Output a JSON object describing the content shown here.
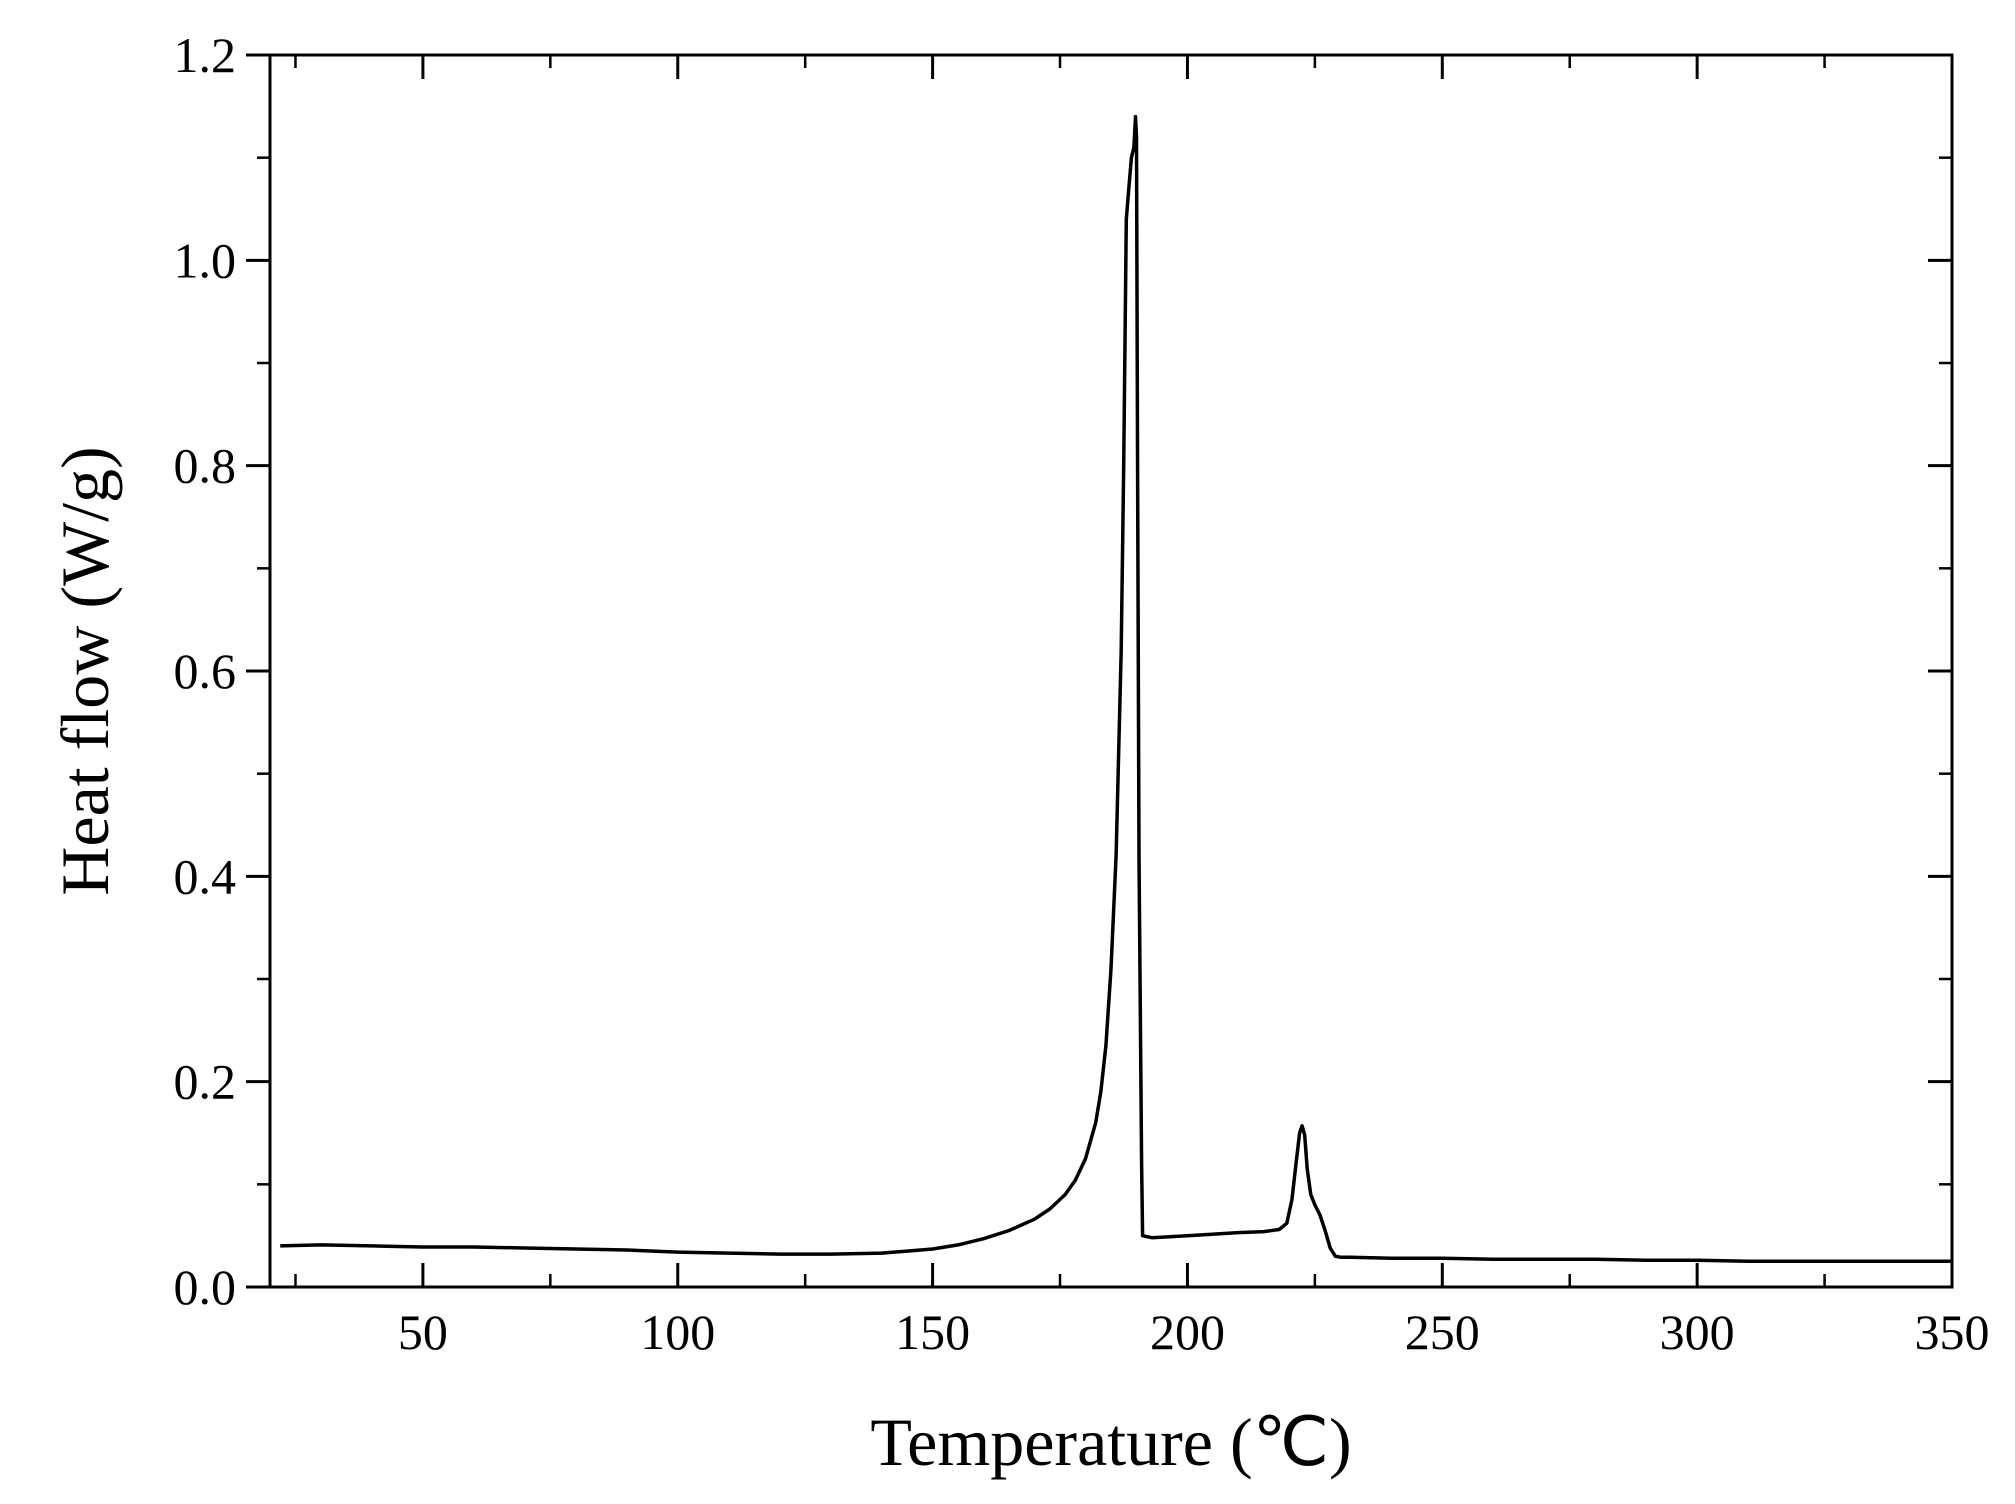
{
  "chart_data": {
    "type": "line",
    "title": "",
    "xlabel": "Temperature (℃)",
    "ylabel": "Heat flow (W/g)",
    "xlim": [
      20,
      350
    ],
    "ylim": [
      0.0,
      1.2
    ],
    "x_ticks": [
      50,
      100,
      150,
      200,
      250,
      300,
      350
    ],
    "x_tick_labels": [
      "50",
      "100",
      "150",
      "200",
      "250",
      "300",
      "350"
    ],
    "y_ticks": [
      0.0,
      0.2,
      0.4,
      0.6,
      0.8,
      1.0,
      1.2
    ],
    "y_tick_labels": [
      "0.0",
      "0.2",
      "0.4",
      "0.6",
      "0.8",
      "1.0",
      "1.2"
    ],
    "grid": false,
    "line_color": "#000000",
    "series": [
      {
        "x": [
          22,
          30,
          40,
          50,
          60,
          70,
          80,
          90,
          100,
          110,
          120,
          130,
          140,
          145,
          150,
          155,
          160,
          165,
          170,
          173,
          176,
          178,
          180,
          182,
          183,
          184,
          185,
          186,
          187,
          187.5,
          188,
          188.5,
          189,
          189.5,
          189.8,
          190,
          190.2,
          190.5,
          191,
          191.2,
          193,
          200,
          210,
          215,
          218,
          219.5,
          220.5,
          221.3,
          222,
          222.5,
          223,
          223.5,
          224.2,
          225,
          226,
          227,
          228,
          229,
          230,
          232,
          240,
          250,
          260,
          270,
          280,
          290,
          300,
          310,
          320,
          330,
          340,
          350
        ],
        "y": [
          0.04,
          0.041,
          0.04,
          0.039,
          0.039,
          0.038,
          0.037,
          0.036,
          0.034,
          0.033,
          0.032,
          0.032,
          0.033,
          0.035,
          0.037,
          0.041,
          0.047,
          0.055,
          0.066,
          0.076,
          0.09,
          0.104,
          0.125,
          0.16,
          0.19,
          0.235,
          0.31,
          0.42,
          0.62,
          0.8,
          1.04,
          1.07,
          1.1,
          1.11,
          1.14,
          1.12,
          0.82,
          0.42,
          0.12,
          0.05,
          0.048,
          0.05,
          0.053,
          0.054,
          0.056,
          0.062,
          0.085,
          0.12,
          0.15,
          0.157,
          0.148,
          0.115,
          0.09,
          0.08,
          0.07,
          0.055,
          0.038,
          0.03,
          0.029,
          0.029,
          0.028,
          0.028,
          0.027,
          0.027,
          0.027,
          0.026,
          0.026,
          0.025,
          0.025,
          0.025,
          0.025,
          0.025
        ]
      }
    ]
  }
}
